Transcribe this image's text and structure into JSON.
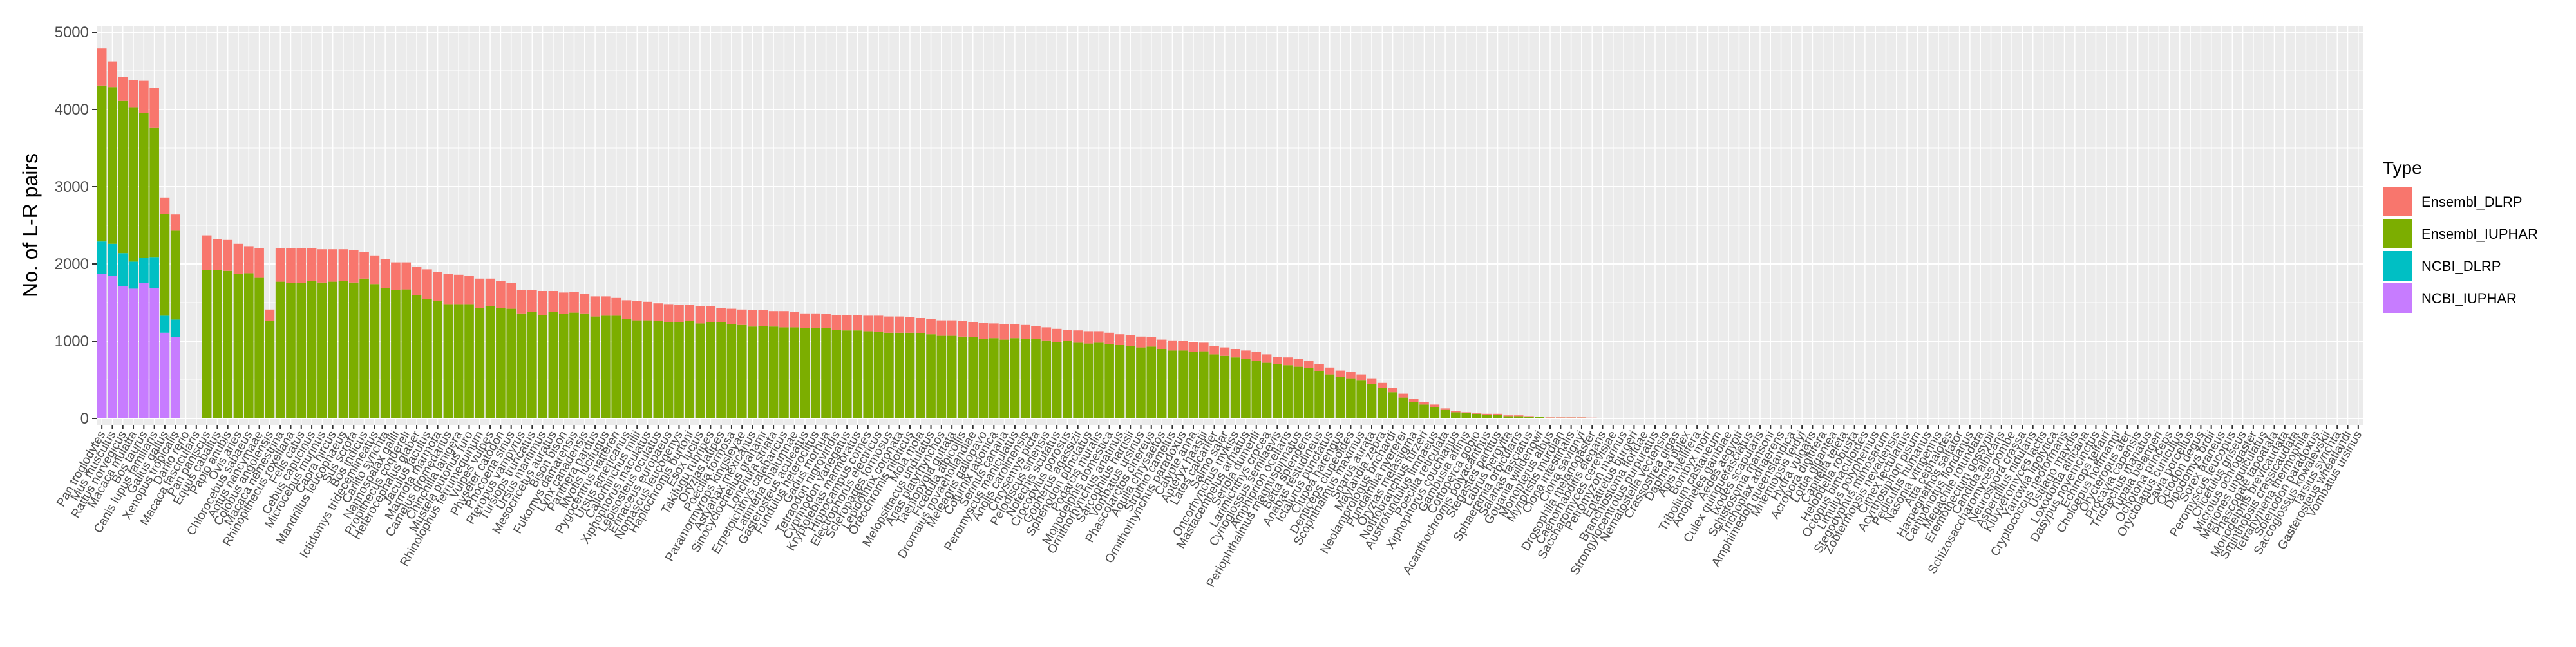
{
  "chart_data": {
    "type": "bar",
    "stacked": true,
    "ylabel": "No. of L-R pairs",
    "xlabel": "",
    "ylim": [
      0,
      5000
    ],
    "yticks": [
      0,
      1000,
      2000,
      3000,
      4000,
      5000
    ],
    "grid": true,
    "legend": {
      "title": "Type",
      "position": "right",
      "entries": [
        "Ensembl_DLRP",
        "Ensembl_IUPHAR",
        "NCBI_DLRP",
        "NCBI_IUPHAR"
      ]
    },
    "colors": {
      "Ensembl_DLRP": "#f8766d",
      "Ensembl_IUPHAR": "#7cae00",
      "NCBI_DLRP": "#00bfc4",
      "NCBI_IUPHAR": "#c77cff",
      "panel": "#ebebeb",
      "grid": "#ffffff"
    },
    "categories": [
      "Pan troglodytes",
      "Mus musculus",
      "Rattus norvegicus",
      "Macaca mulatta",
      "Bos taurus",
      "Canis lupus familiaris",
      "Gallus gallus",
      "Xenopus tropicalis",
      "Danio rerio",
      "Macaca fascicularis",
      "Pan paniscus",
      "Equus caballus",
      "Papio anubis",
      "Ovis aries",
      "Chlorocebus sabaeus",
      "Aotus nancymaae",
      "Colobus angolensis",
      "Macaca nemestrina",
      "Rhinopithecus roxellana",
      "Felis catus",
      "Cebus capucinus",
      "Microcebus murinus",
      "Capra hircus",
      "Mandrillus leucophaeus",
      "Sus scrofa",
      "Bos indicus",
      "Ictidomys tridecemlineatus",
      "Carlito syrichta",
      "Nannospalax galili",
      "Propithecus coquereli",
      "Heterocephalus glaber",
      "Jaculus jaculus",
      "Marmota marmota",
      "Camelus dromedarius",
      "Chinchilla lanigera",
      "Mustela putorius furo",
      "Rhinolophus ferrumequinum",
      "Vulpes vulpes",
      "Physeter catodon",
      "Phocoena sinus",
      "Pteropus vampyrus",
      "Tursiops truncatus",
      "Ursus maritimus",
      "Mesocricetus auratus",
      "Bison bison",
      "Fukomys damarensis",
      "Lynx canadensis",
      "Panthera pardus",
      "Myotis lucifugus",
      "Pygocentrus nattereri",
      "Ursus americanus",
      "Callorhinchus milii",
      "Xiphophorus maculatus",
      "Lepisosteus oculatus",
      "Erinaceus europaeus",
      "Nomascus leucogenys",
      "Haplochromis burtoni",
      "Esox lucius",
      "Takifugu rubripes",
      "Oryzias latipes",
      "Poecilia formosa",
      "Paramormyrops kingsleyae",
      "Astyanax mexicanus",
      "Sinocyclocheilus grahami",
      "Lonchura striata",
      "Erpetoichthys calabaricus",
      "Latimeria chalumnae",
      "Gasterosteus aculeatus",
      "Fundulus heteroclitus",
      "Gadus morhua",
      "Tetraodon nigroviridis",
      "Cyprinodon variegatus",
      "Kryptolebias marmoratus",
      "Hippocampus comes",
      "Electrophorus electricus",
      "Scleropages formosus",
      "Lepidothrix coronata",
      "Oreochromis niloticus",
      "Mola mola",
      "Melopsittacus undulatus",
      "Anas platyrhynchos",
      "Taeniopygia guttata",
      "Ficedula albicollis",
      "Dromaius novaehollandiae",
      "Meleagris gallopavo",
      "Coturnix japonica",
      "Serinus canaria",
      "Peromyscus maniculatus",
      "Anolis carolinensis",
      "Chrysemys picta",
      "Pelodiscus sinensis",
      "Notechis scutatus",
      "Crocodylus porosus",
      "Gopherus agassizii",
      "Sphenodon punctatus",
      "Podarcis muralis",
      "Monodelphis domestica",
      "Ornithorhynchus anatinus",
      "Sarcophilus harrisii",
      "Vombatus ursinus",
      "Phascolarctos cinereus",
      "Aquila chrysaetos",
      "Struthio camelus",
      "Ornithorhynchus paradoxus",
      "Calypte anna",
      "Apteryx haastii",
      "Lates calcarifer",
      "Salmo salar",
      "Oncorhynchus mykiss",
      "Mastacembelus armatus",
      "Seriola dumerili",
      "Larimichthys crocea",
      "Cynoglossus semilaevis",
      "Amphiprion ocellaris",
      "Periophthalmus magnuspinnatus",
      "Betta splendens",
      "Anabas testudineus",
      "Ictalurus punctatus",
      "Clupea harengus",
      "Denticeps clupeoides",
      "Scophthalmus maximus",
      "Sparus aurata",
      "Maylandia zebra",
      "Neolamprologus brichardi",
      "Pundamilia nyererei",
      "Oryzias melastigma",
      "Nothobranchius furzeri",
      "Austrofundulus limnaeus",
      "Poecilia reticulata",
      "Xiphophorus couchianus",
      "Gambusia affinis",
      "Cottoperca gobio",
      "Acanthochromis polyacanthus",
      "Stegastes partitus",
      "Labrus bergylta",
      "Sphaeramia orbicularis",
      "Salarias fasciatus",
      "Gouania willdenowi",
      "Monopterus albus",
      "Myripristis murdjan",
      "Ciona intestinalis",
      "Ciona savignyi",
      "Drosophila melanogaster",
      "Caenorhabditis elegans",
      "Saccharomyces cerevisiae",
      "Petromyzon marinus",
      "Eptatretus burgeri",
      "Branchiostoma floridae",
      "Strongylocentrotus purpuratus",
      "Nematostella vectensis",
      "Crassostrea gigas",
      "Daphnia pulex",
      "Apis mellifera",
      "Bombyx mori",
      "Tribolium castaneum",
      "Anopheles gambiae",
      "Aedes aegypti",
      "Culex quinquefasciatus",
      "Ixodes scapularis",
      "Schistosoma mansoni",
      "Trichoplax adhaerens",
      "Amphimedon queenslandica",
      "Mnemiopsis leidyi",
      "Hydra vulgaris",
      "Acropora digitifera",
      "Lottia gigantea",
      "Capitella teleta",
      "Helobdella robusta",
      "Octopus bimaculoides",
      "Limulus polyphemus",
      "Stegodyphus mimosarum",
      "Zootermopsis nevadensis",
      "Cimex lectularius",
      "Acyrthosiphon pisum",
      "Pediculus humanus",
      "Nasonia vitripennis",
      "Atta cephalotes",
      "Harpegnathos saltator",
      "Camponotus floridanus",
      "Megachile rotundata",
      "Eremothecium gossypii",
      "Candida albicans",
      "Schizosaccharomyces pombe",
      "Neurospora crassa",
      "Aspergillus nidulans",
      "Kluyveromyces lactis",
      "Yarrowia lipolytica",
      "Cryptococcus neoformans",
      "Ustilago maydis",
      "Loxodonta africana",
      "Dasypus novemcinctus",
      "Echinops telfairi",
      "Choloepus hoffmanni",
      "Orycteropus afer",
      "Procavia capensis",
      "Trichechus manatus",
      "Tupaia belangeri",
      "Ochotona princeps",
      "Oryctolagus cuniculus",
      "Cavia porcellus",
      "Octodon degus",
      "Dipodomys ordii",
      "Sorex araneus",
      "Peromyscus leucopus",
      "Cricetulus griseus",
      "Microtus ochrogaster",
      "Meriones unguiculatus",
      "Phascogale tapoatafa",
      "Monodelphis brevicaudata",
      "Sminthopsis crassicaudata",
      "Tetrahymena thermophila",
      "Solenodon paradoxus",
      "Saccoglossus kowalevskii",
      "Tarsius syrichta",
      "Gasterosteus wheatlandi",
      "Vombatus ursinus"
    ],
    "series": [
      {
        "name": "Ensembl_DLRP",
        "values": [
          480,
          330,
          310,
          350,
          420,
          520,
          210,
          210,
          0,
          0,
          450,
          400,
          400,
          390,
          350,
          380,
          150,
          430,
          450,
          450,
          420,
          430,
          420,
          410,
          420,
          340,
          370,
          370,
          360,
          350,
          360,
          380,
          380,
          390,
          380,
          370,
          380,
          360,
          350,
          330,
          300,
          280,
          310,
          270,
          280,
          270,
          250,
          260,
          250,
          230,
          240,
          250,
          240,
          230,
          230,
          220,
          210,
          220,
          200,
          180,
          200,
          200,
          210,
          200,
          200,
          210,
          200,
          190,
          190,
          180,
          190,
          200,
          200,
          200,
          210,
          210,
          210,
          200,
          200,
          200,
          200,
          200,
          200,
          200,
          210,
          190,
          200,
          180,
          180,
          170,
          170,
          170,
          150,
          160,
          160,
          150,
          150,
          140,
          140,
          140,
          120,
          120,
          130,
          120,
          130,
          110,
          110,
          110,
          110,
          110,
          110,
          110,
          100,
          100,
          100,
          100,
          90,
          90,
          80,
          80,
          80,
          70,
          60,
          60,
          50,
          40,
          30,
          30,
          20,
          20,
          10,
          10,
          10,
          10,
          10,
          10,
          10,
          5,
          5,
          5,
          5,
          5,
          5,
          0,
          0,
          0,
          0,
          0,
          0,
          0,
          0,
          0,
          0,
          0,
          0,
          0,
          0,
          0,
          0,
          0,
          0,
          0,
          0,
          0,
          0,
          0,
          0,
          0,
          0,
          0,
          0,
          0,
          0,
          0,
          0,
          0,
          0,
          0,
          0,
          0,
          0,
          0,
          0,
          0,
          0,
          0,
          0,
          0,
          0,
          0,
          0,
          0,
          0,
          0,
          0,
          0,
          0,
          0,
          0,
          0,
          0,
          0,
          0,
          0,
          0,
          0,
          0,
          0,
          0,
          0,
          0,
          0,
          0,
          0,
          0,
          0
        ]
      },
      {
        "name": "Ensembl_IUPHAR",
        "values": [
          2020,
          2030,
          1970,
          2000,
          1870,
          1670,
          1320,
          1150,
          0,
          0,
          1920,
          1920,
          1910,
          1870,
          1880,
          1820,
          1260,
          1770,
          1750,
          1750,
          1780,
          1760,
          1770,
          1780,
          1760,
          1810,
          1740,
          1690,
          1660,
          1670,
          1600,
          1550,
          1520,
          1480,
          1480,
          1480,
          1430,
          1450,
          1430,
          1420,
          1360,
          1380,
          1340,
          1380,
          1350,
          1370,
          1360,
          1320,
          1330,
          1330,
          1290,
          1270,
          1270,
          1260,
          1250,
          1250,
          1260,
          1230,
          1250,
          1250,
          1220,
          1210,
          1190,
          1200,
          1190,
          1180,
          1180,
          1170,
          1170,
          1170,
          1150,
          1140,
          1140,
          1130,
          1120,
          1110,
          1110,
          1110,
          1100,
          1090,
          1070,
          1070,
          1060,
          1050,
          1030,
          1040,
          1020,
          1040,
          1030,
          1030,
          1010,
          990,
          1000,
          980,
          970,
          980,
          960,
          950,
          940,
          920,
          930,
          900,
          880,
          880,
          860,
          870,
          830,
          810,
          790,
          770,
          750,
          720,
          700,
          690,
          670,
          650,
          610,
          570,
          540,
          520,
          490,
          450,
          400,
          340,
          270,
          210,
          180,
          150,
          110,
          80,
          70,
          60,
          50,
          50,
          30,
          30,
          20,
          20,
          10,
          10,
          10,
          10,
          5,
          5,
          0,
          0,
          0,
          0,
          0,
          0,
          0,
          0,
          0,
          0,
          0,
          0,
          0,
          0,
          0,
          0,
          0,
          0,
          0,
          0,
          0,
          0,
          0,
          0,
          0,
          0,
          0,
          0,
          0,
          0,
          0,
          0,
          0,
          0,
          0,
          0,
          0,
          0,
          0,
          0,
          0,
          0,
          0,
          0,
          0,
          0,
          0,
          0,
          0,
          0,
          0,
          0,
          0,
          0,
          0,
          0,
          0,
          0,
          0,
          0,
          0,
          0,
          0,
          0,
          0,
          0,
          0,
          0,
          0,
          0,
          0,
          0
        ]
      },
      {
        "name": "NCBI_DLRP",
        "values": [
          420,
          410,
          430,
          350,
          330,
          400,
          220,
          230,
          0,
          0,
          0,
          0,
          0,
          0,
          0,
          0,
          0,
          0,
          0,
          0,
          0,
          0,
          0,
          0,
          0,
          0,
          0,
          0,
          0,
          0,
          0,
          0,
          0,
          0,
          0,
          0,
          0,
          0,
          0,
          0,
          0,
          0,
          0,
          0,
          0,
          0,
          0,
          0,
          0,
          0,
          0,
          0,
          0,
          0,
          0,
          0,
          0,
          0,
          0,
          0,
          0,
          0,
          0,
          0,
          0,
          0,
          0,
          0,
          0,
          0,
          0,
          0,
          0,
          0,
          0,
          0,
          0,
          0,
          0,
          0,
          0,
          0,
          0,
          0,
          0,
          0,
          0,
          0,
          0,
          0,
          0,
          0,
          0,
          0,
          0,
          0,
          0,
          0,
          0,
          0,
          0,
          0,
          0,
          0,
          0,
          0,
          0,
          0,
          0,
          0,
          0,
          0,
          0,
          0,
          0,
          0,
          0,
          0,
          0,
          0,
          0,
          0,
          0,
          0,
          0,
          0,
          0,
          0,
          0,
          0,
          0,
          0,
          0,
          0,
          0,
          0,
          0,
          0,
          0,
          0,
          0,
          0,
          0,
          0,
          0,
          0,
          0,
          0,
          0,
          0,
          0,
          0,
          0,
          0,
          0,
          0,
          0,
          0,
          0,
          0,
          0,
          0,
          0,
          0,
          0,
          0,
          0,
          0,
          0,
          0,
          0,
          0,
          0,
          0,
          0,
          0,
          0,
          0,
          0,
          0,
          0,
          0,
          0,
          0,
          0,
          0,
          0,
          0,
          0,
          0,
          0,
          0,
          0,
          0,
          0,
          0,
          0,
          0,
          0,
          0,
          0,
          0,
          0,
          0,
          0,
          0,
          0,
          0,
          0,
          0,
          0,
          0,
          0,
          0,
          0,
          0
        ]
      },
      {
        "name": "NCBI_IUPHAR",
        "values": [
          1870,
          1850,
          1710,
          1680,
          1750,
          1690,
          1110,
          1050,
          0,
          0,
          0,
          0,
          0,
          0,
          0,
          0,
          0,
          0,
          0,
          0,
          0,
          0,
          0,
          0,
          0,
          0,
          0,
          0,
          0,
          0,
          0,
          0,
          0,
          0,
          0,
          0,
          0,
          0,
          0,
          0,
          0,
          0,
          0,
          0,
          0,
          0,
          0,
          0,
          0,
          0,
          0,
          0,
          0,
          0,
          0,
          0,
          0,
          0,
          0,
          0,
          0,
          0,
          0,
          0,
          0,
          0,
          0,
          0,
          0,
          0,
          0,
          0,
          0,
          0,
          0,
          0,
          0,
          0,
          0,
          0,
          0,
          0,
          0,
          0,
          0,
          0,
          0,
          0,
          0,
          0,
          0,
          0,
          0,
          0,
          0,
          0,
          0,
          0,
          0,
          0,
          0,
          0,
          0,
          0,
          0,
          0,
          0,
          0,
          0,
          0,
          0,
          0,
          0,
          0,
          0,
          0,
          0,
          0,
          0,
          0,
          0,
          0,
          0,
          0,
          0,
          0,
          0,
          0,
          0,
          0,
          0,
          0,
          0,
          0,
          0,
          0,
          0,
          0,
          0,
          0,
          0,
          0,
          0,
          0,
          0,
          0,
          0,
          0,
          0,
          0,
          0,
          0,
          0,
          0,
          0,
          0,
          0,
          0,
          0,
          0,
          0,
          0,
          0,
          0,
          0,
          0,
          0,
          0,
          0,
          0,
          0,
          0,
          0,
          0,
          0,
          0,
          0,
          0,
          0,
          0,
          0,
          0,
          0,
          0,
          0,
          0,
          0,
          0,
          0,
          0,
          0,
          0,
          0,
          0,
          0,
          0,
          0,
          0,
          0,
          0,
          0,
          0,
          0,
          0,
          0,
          0,
          0,
          0,
          0,
          0,
          0,
          0,
          0,
          0,
          0,
          0
        ]
      }
    ]
  }
}
